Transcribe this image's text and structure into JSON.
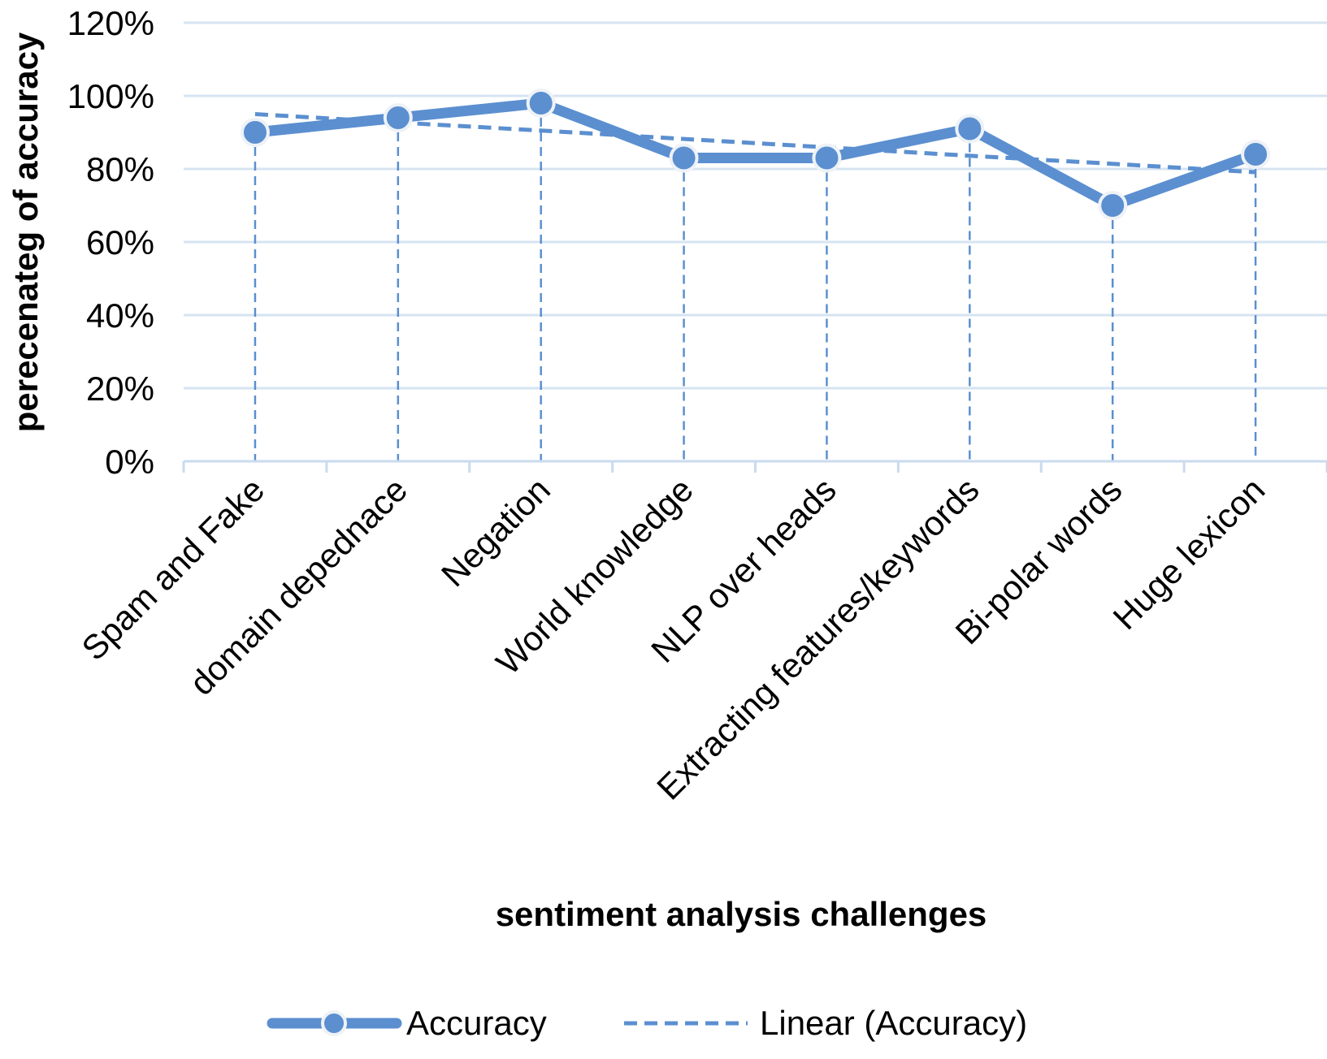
{
  "chart_data": {
    "type": "line",
    "title": "",
    "xlabel": "sentiment analysis challenges",
    "ylabel": "perecenateg of accuracy",
    "categories": [
      "Spam and Fake",
      "domain depednace",
      "Negation",
      "World knowledge",
      "NLP over heads",
      "Extracting features/keywords",
      "Bi-polar words",
      "Huge lexicon"
    ],
    "y_ticks": [
      "0%",
      "20%",
      "40%",
      "60%",
      "80%",
      "100%",
      "120%"
    ],
    "ylim": [
      0,
      120
    ],
    "grid": true,
    "legend_position": "bottom",
    "series": [
      {
        "name": "Accuracy",
        "values": [
          90,
          94,
          98,
          83,
          83,
          91,
          70,
          84
        ],
        "color": "#5b8fd0",
        "style": "solid-markers"
      },
      {
        "name": "Linear (Accuracy)",
        "values": [
          95.0,
          92.7,
          90.5,
          88.2,
          85.9,
          83.6,
          81.4,
          79.1
        ],
        "color": "#5b8fd0",
        "style": "dashed"
      }
    ],
    "drop_lines": true
  },
  "colors": {
    "series": "#5b8fd0",
    "grid": "#d6e4f2",
    "axis": "#c9dbef",
    "marker_outline": "#eef2f7"
  }
}
